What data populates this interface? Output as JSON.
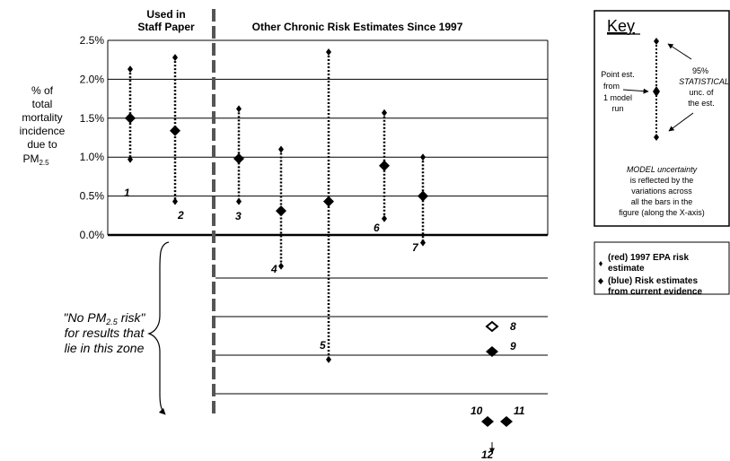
{
  "header": {
    "left_title_line1": "Used in",
    "left_title_line2": "Staff Paper",
    "right_title": "Other Chronic Risk Estimates Since 1997"
  },
  "ylabel": {
    "line1": "% of",
    "line2": "total",
    "line3": "mortality",
    "line4": "incidence",
    "line5": "due to",
    "line6_main": "PM",
    "line6_sub": "2.5"
  },
  "no_risk": {
    "line1_pre": "\"No PM",
    "line1_sub": "2.5",
    "line1_post": " risk\"",
    "line2": "for results that",
    "line3": "lie in this zone"
  },
  "key": {
    "title": "Key",
    "point_line1": "Point est.",
    "point_line2": "from",
    "point_line3": "1 model",
    "point_line4": "run",
    "ci_line1": "95%",
    "ci_line2": "STATISTICAL",
    "ci_line3": "unc. of",
    "ci_line4": "the est.",
    "model_line1": "MODEL uncertainty",
    "model_line2": "is reflected by the",
    "model_line3": "variations across",
    "model_line4": "all the bars in the",
    "model_line5": "figure (along the X-axis)",
    "legend_red_line1": "(red)   1997 EPA risk",
    "legend_red_line2": "estimate",
    "legend_blue_line1": "(blue) Risk estimates",
    "legend_blue_line2": "from current evidence"
  },
  "colors": {
    "marker": "#000000",
    "grid": "#000000",
    "divider": "#555555"
  },
  "chart_data": {
    "type": "scatter",
    "title": "Other Chronic Risk Estimates Since 1997",
    "ylabel": "% of total mortality incidence due to PM2.5",
    "yticks": [
      "2.5%",
      "2.0%",
      "1.5%",
      "1.0%",
      "0.5%",
      "0.0%"
    ],
    "ylim": [
      0,
      2.5
    ],
    "estimates": [
      {
        "label": "1",
        "point": 1.5,
        "lower": 0.97,
        "upper": 2.13,
        "zone": "main"
      },
      {
        "label": "2",
        "point": 1.34,
        "lower": 0.43,
        "upper": 2.28,
        "zone": "main"
      },
      {
        "label": "3",
        "point": 0.98,
        "lower": 0.43,
        "upper": 1.62,
        "zone": "main"
      },
      {
        "label": "4",
        "point": 0.31,
        "lower": -0.4,
        "upper": 1.1,
        "zone": "main"
      },
      {
        "label": "5",
        "point": 0.43,
        "lower": -1.6,
        "upper": 2.35,
        "zone": "main"
      },
      {
        "label": "6",
        "point": 0.89,
        "lower": 0.21,
        "upper": 1.57,
        "zone": "main"
      },
      {
        "label": "7",
        "point": 0.5,
        "lower": -0.1,
        "upper": 1.0,
        "zone": "main"
      },
      {
        "label": "8",
        "zone": "no_risk",
        "marker": "hollow"
      },
      {
        "label": "9",
        "zone": "no_risk",
        "marker": "filled"
      },
      {
        "label": "10",
        "zone": "no_risk",
        "marker": "filled"
      },
      {
        "label": "11",
        "zone": "no_risk",
        "marker": "filled"
      },
      {
        "label": "12",
        "zone": "no_risk",
        "marker": "arrow"
      }
    ]
  }
}
